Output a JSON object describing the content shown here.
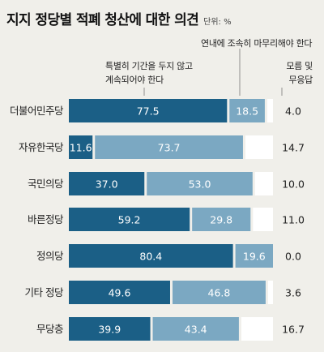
{
  "chart_data": {
    "type": "bar",
    "stacked": true,
    "orientation": "horizontal",
    "title": "지지 정당별 적폐 청산에 대한 의견",
    "unit": "단위: %",
    "categories": [
      "더불어민주당",
      "자유한국당",
      "국민의당",
      "바른정당",
      "정의당",
      "기타 정당",
      "무당층"
    ],
    "series": [
      {
        "name": "연내에 조속히 마무리해야 한다",
        "color": "#1b5f86",
        "values": [
          77.5,
          11.6,
          37.0,
          59.2,
          80.4,
          49.6,
          39.9
        ]
      },
      {
        "name": "특별히 기간을 두지 않고 계속되어야 한다",
        "color": "#7ba8c2",
        "values": [
          18.5,
          73.7,
          53.0,
          29.8,
          19.6,
          46.8,
          43.4
        ]
      },
      {
        "name": "모름 및 무응답",
        "color": "#ffffff",
        "values": [
          4.0,
          14.7,
          10.0,
          11.0,
          0.0,
          3.6,
          16.7
        ]
      }
    ],
    "labels": {
      "s1": [
        "77.5",
        "11.6",
        "37.0",
        "59.2",
        "80.4",
        "49.6",
        "39.9"
      ],
      "s2": [
        "18.5",
        "73.7",
        "53.0",
        "29.8",
        "19.6",
        "46.8",
        "43.4"
      ],
      "s3": [
        "4.0",
        "14.7",
        "10.0",
        "11.0",
        "0.0",
        "3.6",
        "16.7"
      ]
    },
    "header_labels": {
      "top": "연내에 조속히 마무리해야 한다",
      "mid_line1": "특별히 기간을 두지 않고",
      "mid_line2": "계속되어야 한다",
      "right_line1": "모름 및",
      "right_line2": "무응답"
    }
  }
}
